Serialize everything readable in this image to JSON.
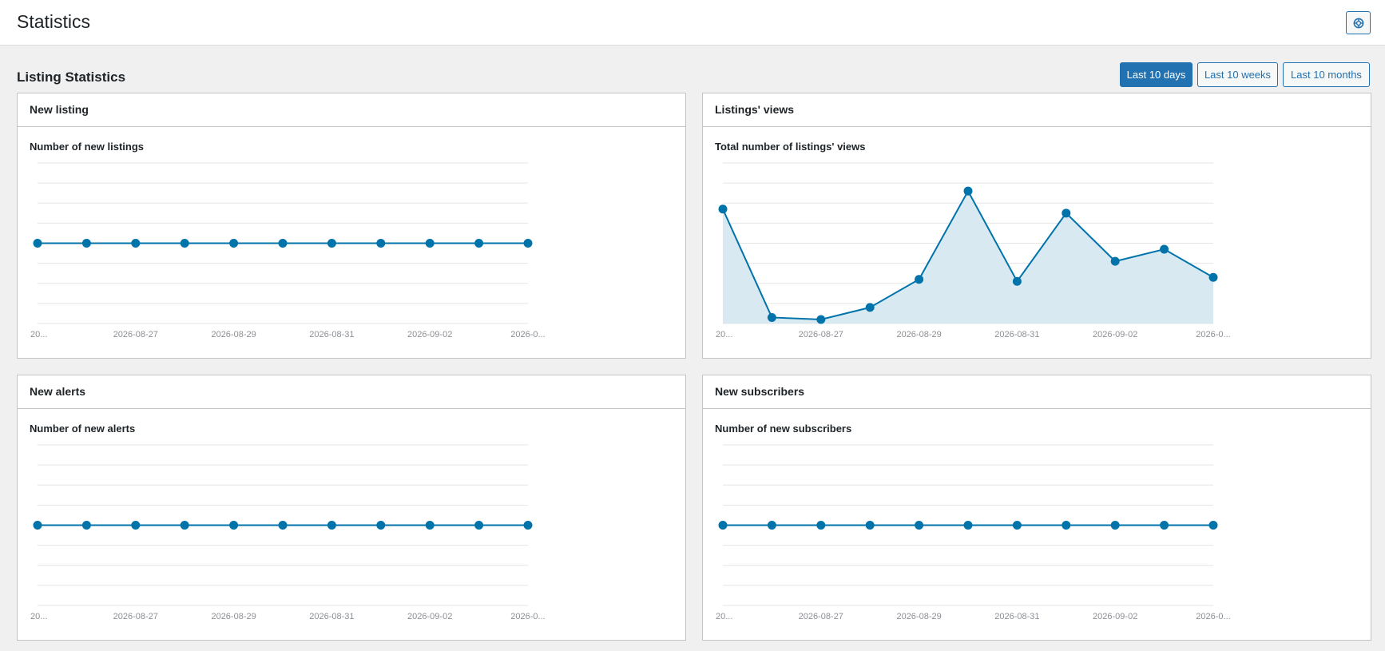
{
  "page": {
    "title": "Statistics"
  },
  "header": {
    "help_icon": "lifebuoy-icon"
  },
  "section": {
    "title": "Listing Statistics"
  },
  "ranges": [
    {
      "label": "Last 10 days",
      "active": true
    },
    {
      "label": "Last 10 weeks",
      "active": false
    },
    {
      "label": "Last 10 months",
      "active": false
    }
  ],
  "colors": {
    "accent": "#2271b1",
    "series": "#0073aa",
    "fill": "#d5e7f1"
  },
  "cards": [
    {
      "header": "New listing",
      "chart_title": "Number of new listings"
    },
    {
      "header": "Listings' views",
      "chart_title": "Total number of listings' views"
    },
    {
      "header": "New alerts",
      "chart_title": "Number of new alerts"
    },
    {
      "header": "New subscribers",
      "chart_title": "Number of new subscribers"
    }
  ],
  "chart_data": [
    {
      "type": "line",
      "title": "Number of new listings",
      "x": [
        "2026-08-25",
        "2026-08-26",
        "2026-08-27",
        "2026-08-28",
        "2026-08-29",
        "2026-08-30",
        "2026-08-31",
        "2026-09-01",
        "2026-09-02",
        "2026-09-03",
        "2026-09-04"
      ],
      "tick_labels": [
        "20...",
        "2026-08-27",
        "2026-08-29",
        "2026-08-31",
        "2026-09-02",
        "2026-0..."
      ],
      "series": [
        {
          "values": [
            0,
            0,
            0,
            0,
            0,
            0,
            0,
            0,
            0,
            0,
            0
          ]
        }
      ],
      "ylim": [
        -1,
        1
      ],
      "fill": false,
      "grid": true
    },
    {
      "type": "area",
      "title": "Total number of listings' views",
      "x": [
        "2026-08-25",
        "2026-08-26",
        "2026-08-27",
        "2026-08-28",
        "2026-08-29",
        "2026-08-30",
        "2026-08-31",
        "2026-09-01",
        "2026-09-02",
        "2026-09-03",
        "2026-09-04"
      ],
      "tick_labels": [
        "20...",
        "2026-08-27",
        "2026-08-29",
        "2026-08-31",
        "2026-09-02",
        "2026-0..."
      ],
      "series": [
        {
          "values": [
            57,
            3,
            2,
            8,
            22,
            66,
            21,
            55,
            31,
            37,
            23
          ]
        }
      ],
      "ylim": [
        0,
        80
      ],
      "fill": true,
      "grid": true
    },
    {
      "type": "line",
      "title": "Number of new alerts",
      "x": [
        "2026-08-25",
        "2026-08-26",
        "2026-08-27",
        "2026-08-28",
        "2026-08-29",
        "2026-08-30",
        "2026-08-31",
        "2026-09-01",
        "2026-09-02",
        "2026-09-03",
        "2026-09-04"
      ],
      "tick_labels": [
        "20...",
        "2026-08-27",
        "2026-08-29",
        "2026-08-31",
        "2026-09-02",
        "2026-0..."
      ],
      "series": [
        {
          "values": [
            0,
            0,
            0,
            0,
            0,
            0,
            0,
            0,
            0,
            0,
            0
          ]
        }
      ],
      "ylim": [
        -1,
        1
      ],
      "fill": false,
      "grid": true
    },
    {
      "type": "line",
      "title": "Number of new subscribers",
      "x": [
        "2026-08-25",
        "2026-08-26",
        "2026-08-27",
        "2026-08-28",
        "2026-08-29",
        "2026-08-30",
        "2026-08-31",
        "2026-09-01",
        "2026-09-02",
        "2026-09-03",
        "2026-09-04"
      ],
      "tick_labels": [
        "20...",
        "2026-08-27",
        "2026-08-29",
        "2026-08-31",
        "2026-09-02",
        "2026-0..."
      ],
      "series": [
        {
          "values": [
            0,
            0,
            0,
            0,
            0,
            0,
            0,
            0,
            0,
            0,
            0
          ]
        }
      ],
      "ylim": [
        -1,
        1
      ],
      "fill": false,
      "grid": true
    }
  ]
}
